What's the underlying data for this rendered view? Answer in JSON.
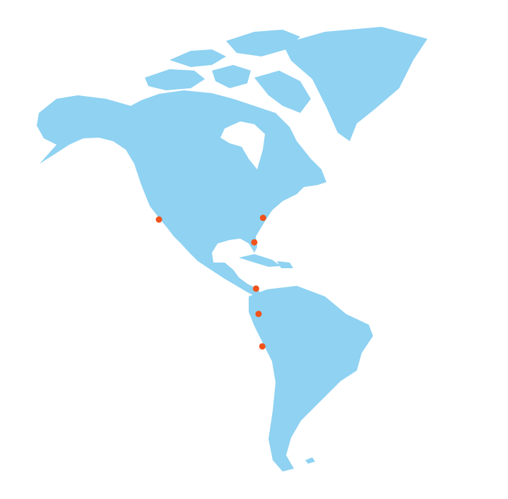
{
  "map": {
    "marker_color": "#f0521a",
    "land_color": "#8fd2f2",
    "markers": [
      {
        "lon": -118.2,
        "lat": 34.1
      },
      {
        "lon": -76.7,
        "lat": 34.7
      },
      {
        "lon": -80.2,
        "lat": 25.8
      },
      {
        "lon": -79.5,
        "lat": 9.0
      },
      {
        "lon": -78.5,
        "lat": -0.2
      },
      {
        "lon": -77.0,
        "lat": -12.0
      }
    ]
  }
}
